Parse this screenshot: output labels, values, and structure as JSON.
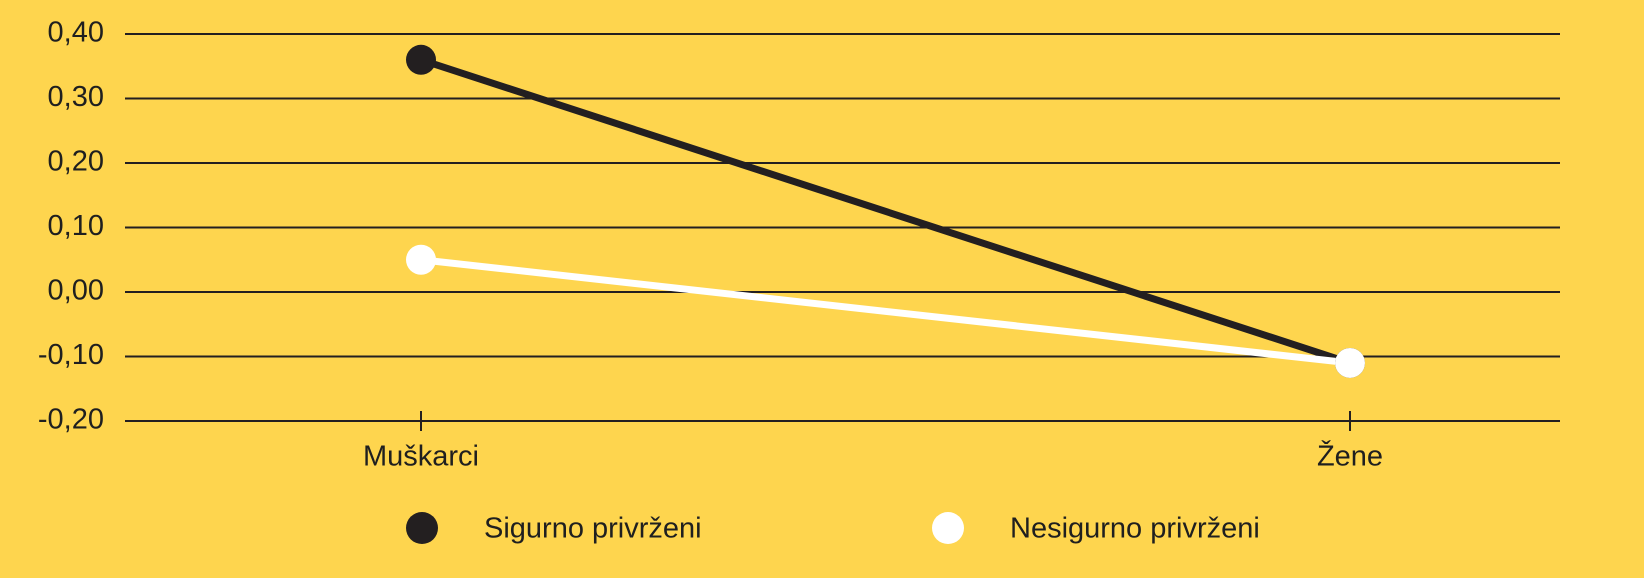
{
  "chart_data": {
    "type": "line",
    "categories": [
      "Muškarci",
      "Žene"
    ],
    "series": [
      {
        "name": "Sigurno privrženi",
        "color": "#231f20",
        "values": [
          0.36,
          -0.11
        ]
      },
      {
        "name": "Nesigurno privrženi",
        "color": "#ffffff",
        "values": [
          0.05,
          -0.11
        ]
      }
    ],
    "ylim": [
      -0.2,
      0.4
    ],
    "yticks": [
      {
        "value": -0.2,
        "label": "-0,20"
      },
      {
        "value": -0.1,
        "label": "-0,10"
      },
      {
        "value": 0,
        "label": "0,00"
      },
      {
        "value": 0.1,
        "label": "0,10"
      },
      {
        "value": 0.2,
        "label": "0,20"
      },
      {
        "value": 0.3,
        "label": "0,30"
      },
      {
        "value": 0.4,
        "label": "0,40"
      }
    ],
    "grid": true,
    "legend": "bottom"
  }
}
